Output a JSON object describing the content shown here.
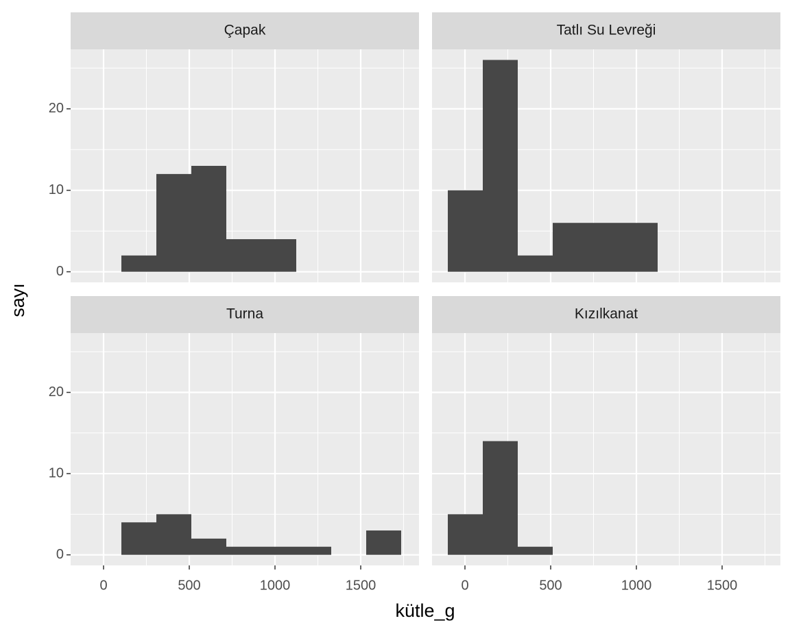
{
  "chart_data": {
    "type": "histogram",
    "x_label": "kütle_g",
    "y_label": "sayı",
    "bins": [
      -100,
      104,
      308,
      512,
      716,
      920,
      1124,
      1328,
      1532,
      1736
    ],
    "facets": [
      {
        "title": "Çapak",
        "values": [
          0,
          2,
          12,
          13,
          4,
          4,
          0,
          0,
          0
        ]
      },
      {
        "title": "Tatlı Su Levreği",
        "values": [
          10,
          26,
          2,
          6,
          6,
          6,
          0,
          0,
          0
        ]
      },
      {
        "title": "Turna",
        "values": [
          0,
          4,
          5,
          2,
          1,
          1,
          1,
          0,
          3
        ]
      },
      {
        "title": "Kızılkanat",
        "values": [
          5,
          14,
          1,
          0,
          0,
          0,
          0,
          0,
          0
        ]
      }
    ],
    "color": "#474747",
    "xlim": [
      -192,
      1840
    ],
    "ylim": [
      -1.3,
      27.3
    ],
    "xticks": [
      0,
      500,
      1000,
      1500
    ],
    "yticks": [
      0,
      10,
      20
    ],
    "xminor": [
      250,
      750,
      1250,
      1750
    ],
    "yminor": [
      5,
      15,
      25
    ],
    "grid": true
  }
}
